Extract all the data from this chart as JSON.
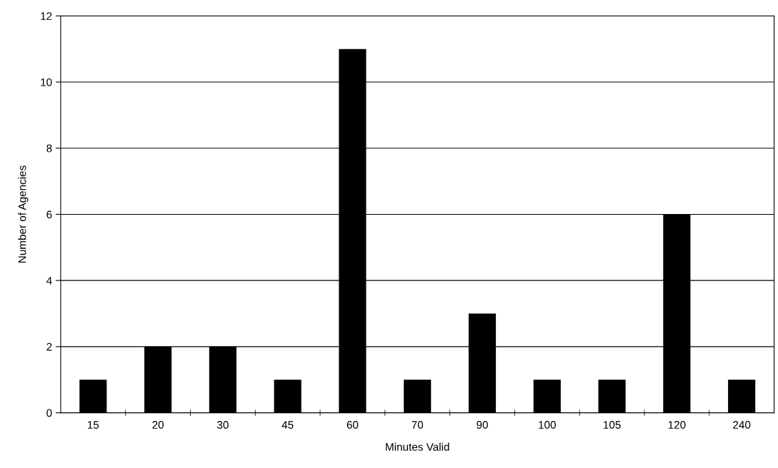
{
  "chart_data": {
    "type": "bar",
    "xlabel": "Minutes Valid",
    "ylabel": "Number of Agencies",
    "categories": [
      "15",
      "20",
      "30",
      "45",
      "60",
      "70",
      "90",
      "100",
      "105",
      "120",
      "240"
    ],
    "values": [
      1,
      2,
      2,
      1,
      11,
      1,
      3,
      1,
      1,
      6,
      1
    ],
    "color": "#000000",
    "ylim": [
      0,
      12
    ],
    "yticks": [
      0,
      2,
      4,
      6,
      8,
      10,
      12
    ],
    "grid": "y"
  }
}
